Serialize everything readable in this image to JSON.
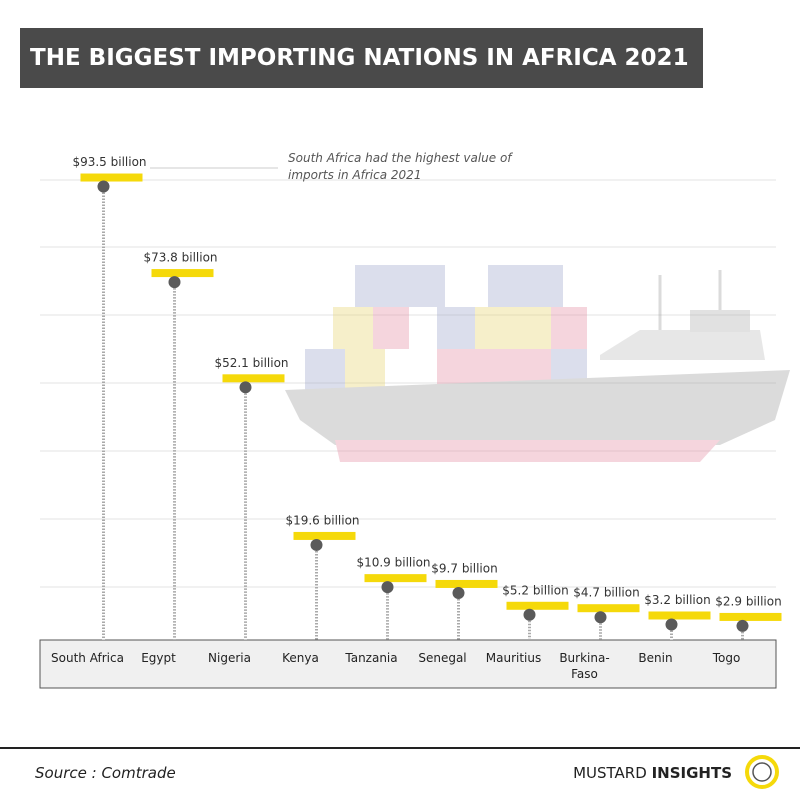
{
  "chart_data": {
    "type": "lollipop",
    "title": "THE BIGGEST IMPORTING NATIONS IN AFRICA 2021",
    "annotation": "South Africa had the highest value of imports in Africa 2021",
    "categories": [
      "South Africa",
      "Egypt",
      "Nigeria",
      "Kenya",
      "Tanzania",
      "Senegal",
      "Mauritius",
      "Burkina-\nFaso",
      "Benin",
      "Togo"
    ],
    "values": [
      93.5,
      73.8,
      52.1,
      19.6,
      10.9,
      9.7,
      5.2,
      4.7,
      3.2,
      2.9
    ],
    "value_labels": [
      "$93.5 billion",
      "$73.8 billion",
      "$52.1 billion",
      "$19.6 billion",
      "$10.9 billion",
      "$9.7 billion",
      "$5.2 billion",
      "$4.7 billion",
      "$3.2 billion",
      "$2.9 billion"
    ],
    "color": "#f5d90a",
    "ylim": [
      0,
      100
    ],
    "source": "Source : Comtrade",
    "brand_light": "MUSTARD",
    "brand_bold": "INSIGHTS"
  }
}
